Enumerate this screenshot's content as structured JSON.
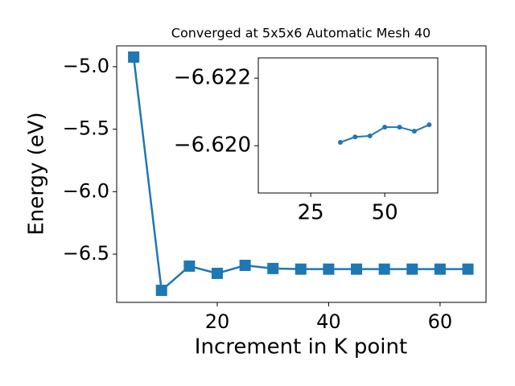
{
  "chart_data": [
    {
      "type": "line",
      "title": "Converged at 5x5x6 Automatic Mesh 40",
      "x_label": "Increment in K point",
      "y_label": "Energy (eV)",
      "x": [
        5,
        10,
        15,
        20,
        25,
        30,
        35,
        40,
        45,
        50,
        55,
        60,
        65
      ],
      "series": [
        {
          "color": "#1f77b4",
          "marker": "square",
          "values": [
            -4.923,
            -6.79,
            -6.596,
            -6.654,
            -6.59,
            -6.615,
            -6.62,
            -6.62,
            -6.62,
            -6.62,
            -6.62,
            -6.62,
            -6.62
          ]
        }
      ],
      "xlim": [
        1.95,
        68.25
      ],
      "ylim": [
        -6.886,
        -4.833
      ],
      "xticks": [
        20,
        40,
        60
      ],
      "yticks": [
        {
          "value": -5.0,
          "label": "−5.0"
        },
        {
          "value": -5.5,
          "label": "−5.5"
        },
        {
          "value": -6.0,
          "label": "−6.0"
        },
        {
          "value": -6.5,
          "label": "−6.5"
        }
      ]
    },
    {
      "type": "line",
      "x": [
        35,
        40,
        45,
        50,
        55,
        60,
        65
      ],
      "series": [
        {
          "color": "#1f77b4",
          "marker": "circle",
          "values": [
            -6.6201,
            -6.62026,
            -6.62029,
            -6.62055,
            -6.62055,
            -6.62043,
            -6.62062
          ]
        }
      ],
      "xlim": [
        7.3,
        67.9
      ],
      "ylim": [
        -6.6186,
        -6.6226
      ],
      "xticks": [
        25,
        50
      ],
      "yticks": [
        {
          "value": -6.622,
          "label": "−6.622"
        },
        {
          "value": -6.62,
          "label": "−6.620"
        }
      ]
    }
  ]
}
